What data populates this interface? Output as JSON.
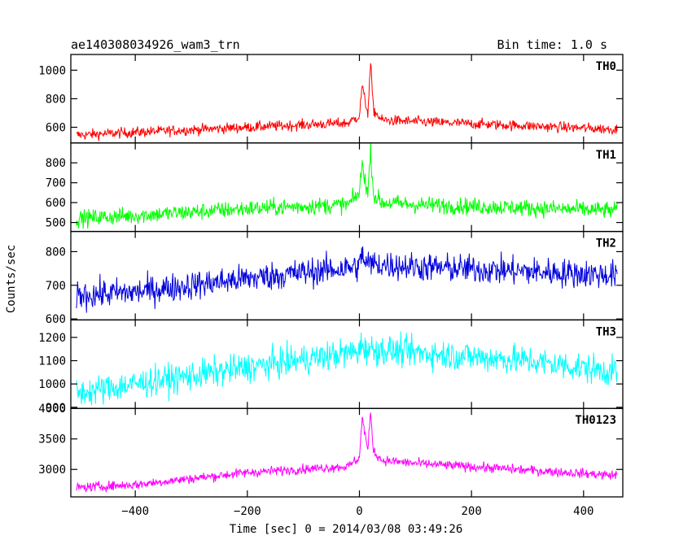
{
  "header": {
    "title": "ae140308034926_wam3_trn",
    "bin_time": "Bin time: 1.0 s"
  },
  "chart_data": {
    "type": "line",
    "title": "ae140308034926_wam3_trn",
    "subtitle": "Bin time: 1.0 s",
    "xlabel": "Time [sec] 0 = 2014/03/08 03:49:26",
    "ylabel": "Counts/sec",
    "xlim": [
      -515,
      470
    ],
    "xticks": [
      -400,
      -200,
      0,
      200,
      400
    ],
    "xticklabels": [
      "−400",
      "−200",
      "0",
      "200",
      "400"
    ],
    "x_range": [
      -505,
      460
    ],
    "bin_time_s": 1.0,
    "panels": [
      {
        "name": "TH0",
        "color": "#ff0000",
        "ylim": [
          490,
          1110
        ],
        "yticks": [
          600,
          800,
          1000
        ],
        "yticklabels": [
          "600",
          "800",
          "1000"
        ],
        "profile": [
          [
            -505,
            545
          ],
          [
            -400,
            565
          ],
          [
            -200,
            600
          ],
          [
            -20,
            630
          ],
          [
            0,
            680
          ],
          [
            5,
            900
          ],
          [
            8,
            820
          ],
          [
            15,
            700
          ],
          [
            20,
            1050
          ],
          [
            25,
            720
          ],
          [
            40,
            650
          ],
          [
            100,
            640
          ],
          [
            460,
            585
          ]
        ],
        "noise": 26
      },
      {
        "name": "TH1",
        "color": "#00ff00",
        "ylim": [
          455,
          900
        ],
        "yticks": [
          500,
          600,
          700,
          800
        ],
        "yticklabels": [
          "500",
          "600",
          "700",
          "800"
        ],
        "profile": [
          [
            -505,
            520
          ],
          [
            -400,
            535
          ],
          [
            -200,
            570
          ],
          [
            -20,
            590
          ],
          [
            0,
            650
          ],
          [
            5,
            800
          ],
          [
            8,
            750
          ],
          [
            15,
            640
          ],
          [
            20,
            870
          ],
          [
            25,
            640
          ],
          [
            40,
            600
          ],
          [
            100,
            590
          ],
          [
            460,
            560
          ]
        ],
        "noise": 30
      },
      {
        "name": "TH2",
        "color": "#0000dd",
        "ylim": [
          597,
          860
        ],
        "yticks": [
          600,
          700,
          800
        ],
        "yticklabels": [
          "600",
          "700",
          "800"
        ],
        "profile": [
          [
            -505,
            670
          ],
          [
            -400,
            680
          ],
          [
            -200,
            720
          ],
          [
            0,
            755
          ],
          [
            5,
            800
          ],
          [
            10,
            765
          ],
          [
            100,
            755
          ],
          [
            460,
            730
          ]
        ],
        "noise": 30
      },
      {
        "name": "TH3",
        "color": "#00ffff",
        "ylim": [
          895,
          1275
        ],
        "yticks": [
          900,
          1000,
          1100,
          1200
        ],
        "yticklabels": [
          "900",
          "1000",
          "1100",
          "1200"
        ],
        "profile": [
          [
            -505,
            960
          ],
          [
            -400,
            1000
          ],
          [
            -200,
            1070
          ],
          [
            0,
            1140
          ],
          [
            5,
            1180
          ],
          [
            10,
            1150
          ],
          [
            100,
            1135
          ],
          [
            300,
            1100
          ],
          [
            460,
            1050
          ]
        ],
        "noise": 45
      },
      {
        "name": "TH0123",
        "color": "#ff00ff",
        "ylim": [
          2550,
          4000
        ],
        "yticks": [
          3000,
          3500,
          4000
        ],
        "yticklabels": [
          "3000",
          "3500",
          "4000"
        ],
        "profile": [
          [
            -505,
            2700
          ],
          [
            -400,
            2750
          ],
          [
            -200,
            2950
          ],
          [
            -20,
            3050
          ],
          [
            0,
            3200
          ],
          [
            5,
            3850
          ],
          [
            8,
            3700
          ],
          [
            15,
            3300
          ],
          [
            20,
            3950
          ],
          [
            25,
            3300
          ],
          [
            40,
            3150
          ],
          [
            100,
            3100
          ],
          [
            460,
            2900
          ]
        ],
        "noise": 55
      }
    ],
    "grid": false,
    "legend": "none"
  }
}
